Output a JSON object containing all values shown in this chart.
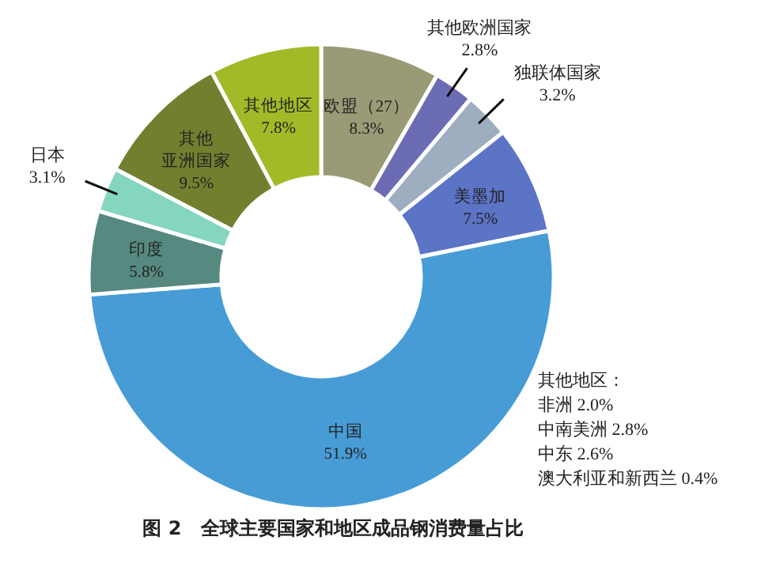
{
  "chart_data": {
    "type": "donut",
    "title": "图 2　全球主要国家和地区成品钢消费量占比",
    "categories": [
      "欧盟（27）",
      "其他欧洲国家",
      "独联体国家",
      "美墨加",
      "中国",
      "印度",
      "日本",
      "其他亚洲国家",
      "其他地区"
    ],
    "values": [
      8.3,
      2.8,
      3.2,
      7.5,
      51.9,
      5.8,
      3.1,
      9.5,
      7.8
    ],
    "colors": [
      "#9a9a76",
      "#6c6cb4",
      "#9caebf",
      "#5b74c6",
      "#489cd6",
      "#568a80",
      "#85d6bf",
      "#727f2e",
      "#a2ba28"
    ],
    "value_labels": [
      "8.3%",
      "2.8%",
      "3.2%",
      "7.5%",
      "51.9%",
      "5.8%",
      "3.1%",
      "9.5%",
      "7.8%"
    ],
    "annotations": [
      "其他地区：",
      "非洲 2.0%",
      "中南美洲 2.8%",
      "中东 2.6%",
      "澳大利亚和新西兰 0.4%"
    ]
  }
}
